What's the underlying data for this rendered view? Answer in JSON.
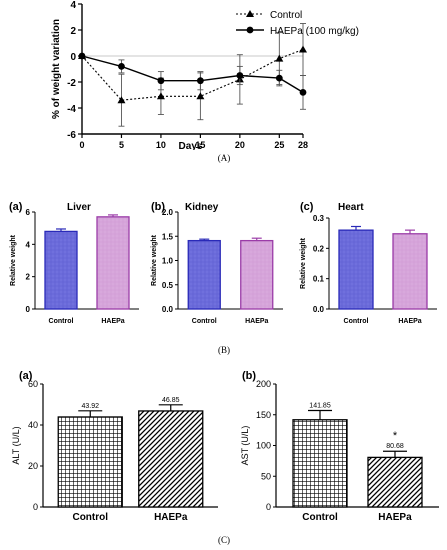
{
  "captions": [
    "(A)",
    "(B)",
    "(C)"
  ],
  "chart_data": [
    {
      "type": "line",
      "panel": "A",
      "xlabel": "Days",
      "ylabel": "% of weight variation",
      "x": [
        0,
        5,
        10,
        15,
        20,
        25,
        28
      ],
      "xticks": [
        "0",
        "5",
        "10",
        "15",
        "20",
        "25",
        "28"
      ],
      "yticks": [
        "-6",
        "-4",
        "-2",
        "0",
        "2",
        "4"
      ],
      "ylim": [
        -6,
        4
      ],
      "legend_position": "top-right",
      "series": [
        {
          "name": "Control",
          "marker": "triangle",
          "dash": true,
          "values": [
            0,
            -3.4,
            -3.1,
            -3.1,
            -1.8,
            -0.2,
            0.5
          ],
          "errors": [
            0,
            2.0,
            1.4,
            1.8,
            1.9,
            2.0,
            2.0
          ]
        },
        {
          "name": "HAEPa (100 mg/kg)",
          "marker": "circle",
          "dash": false,
          "values": [
            0,
            -0.8,
            -1.9,
            -1.9,
            -1.5,
            -1.7,
            -2.8
          ],
          "errors": [
            0,
            0.5,
            0.7,
            0.7,
            0.7,
            0.6,
            1.3
          ]
        }
      ]
    },
    {
      "type": "bar",
      "panel_label": "(a)",
      "title": "Liver",
      "ylabel": "Relative weight",
      "categories": [
        "Control",
        "HAEPa"
      ],
      "values": [
        4.8,
        5.7
      ],
      "errors": [
        0.15,
        0.12
      ],
      "yticks": [
        "0",
        "2",
        "4",
        "6"
      ],
      "ylim": [
        0,
        6
      ],
      "fills": [
        "#7070dd",
        "#d8a8dc"
      ],
      "strokes": [
        "#2a2ab8",
        "#9b3ca8"
      ]
    },
    {
      "type": "bar",
      "panel_label": "(b)",
      "title": "Kidney",
      "ylabel": "Relative weight",
      "categories": [
        "Control",
        "HAEPa"
      ],
      "values": [
        1.41,
        1.41
      ],
      "errors": [
        0.03,
        0.05
      ],
      "yticks": [
        "0.0",
        "0.5",
        "1.0",
        "1.5",
        "2.0"
      ],
      "ylim": [
        0,
        2
      ],
      "fills": [
        "#7070dd",
        "#d8a8dc"
      ],
      "strokes": [
        "#2a2ab8",
        "#9b3ca8"
      ]
    },
    {
      "type": "bar",
      "panel_label": "(c)",
      "title": "Heart",
      "ylabel": "Relative weight",
      "categories": [
        "Control",
        "HAEPa"
      ],
      "values": [
        0.26,
        0.248
      ],
      "errors": [
        0.012,
        0.012
      ],
      "yticks": [
        "0.0",
        "0.1",
        "0.2",
        "0.3"
      ],
      "ylim": [
        0,
        0.3
      ],
      "fills": [
        "#7070dd",
        "#d8a8dc"
      ],
      "strokes": [
        "#2a2ab8",
        "#9b3ca8"
      ]
    },
    {
      "type": "bar",
      "panel_label": "(a)",
      "ylabel": "ALT (U/L)",
      "categories": [
        "Control",
        "HAEPa"
      ],
      "values": [
        43.92,
        46.85
      ],
      "errors": [
        3,
        3
      ],
      "value_labels": [
        "43.92",
        "46.85"
      ],
      "yticks": [
        "0",
        "20",
        "40",
        "60"
      ],
      "ylim": [
        0,
        60
      ],
      "patterns": [
        "grid",
        "diag"
      ]
    },
    {
      "type": "bar",
      "panel_label": "(b)",
      "ylabel": "AST (U/L)",
      "categories": [
        "Control",
        "HAEPa"
      ],
      "values": [
        141.85,
        80.68
      ],
      "errors": [
        15,
        10
      ],
      "value_labels": [
        "141.85",
        "80.68"
      ],
      "annotations": [
        "",
        "*"
      ],
      "yticks": [
        "0",
        "50",
        "100",
        "150",
        "200"
      ],
      "ylim": [
        0,
        200
      ],
      "patterns": [
        "grid",
        "diag"
      ]
    }
  ]
}
